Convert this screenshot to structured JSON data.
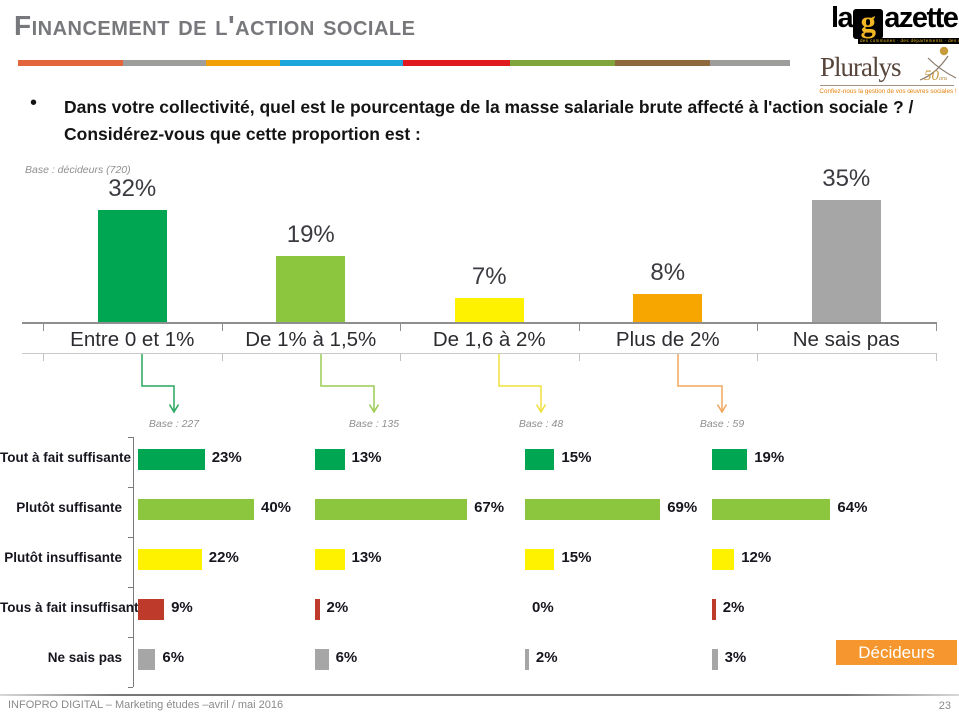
{
  "header": {
    "title": "Financement de l'action sociale",
    "divider_colors": [
      "#E2653B",
      "#9D9D9C",
      "#F2A007",
      "#1BA6DC",
      "#E0191F",
      "#7FA53C",
      "#8F693D",
      "#9D9D9C"
    ],
    "logos": {
      "gazette": {
        "la": "la",
        "g": "g",
        "rest": "azette",
        "tagline": "des communes · des départements · des régions"
      },
      "pluralys": {
        "name": "Pluralys",
        "fifty": "50",
        "ans": "ans",
        "tagline": "Confiez-nous la gestion de vos œuvres sociales !"
      }
    }
  },
  "question": {
    "bullet": "•",
    "text": "Dans votre collectivité, quel est le pourcentage de la masse salariale brute affecté à l'action sociale ? / Considérez-vous que cette proportion est :"
  },
  "base_note": "Base : décideurs (720)",
  "chart_data": [
    {
      "type": "bar",
      "title": "",
      "categories": [
        "Entre 0 et 1%",
        "De 1% à 1,5%",
        "De 1,6 à 2%",
        "Plus de 2%",
        "Ne sais pas"
      ],
      "values": [
        32,
        19,
        7,
        8,
        35
      ],
      "data_labels": [
        "32%",
        "19%",
        "7%",
        "8%",
        "35%"
      ],
      "unit": "%",
      "ylim": [
        0,
        40
      ],
      "grid": false,
      "colors": [
        "#00A651",
        "#8CC63F",
        "#FFF200",
        "#F7A600",
        "#A6A6A6"
      ]
    },
    {
      "type": "bar-horizontal",
      "title": "",
      "rows": [
        "Tout à fait suffisante",
        "Plutôt suffisante",
        "Plutôt insuffisante",
        "Tous à fait insuffisante",
        "Ne sais pas"
      ],
      "row_colors": [
        "#00A651",
        "#8CC63F",
        "#FFF200",
        "#BE3A2B",
        "#A6A6A6"
      ],
      "unit": "%",
      "connector_colors": [
        "#27A55C",
        "#9CCB52",
        "#EFE03C",
        "#F2A55C"
      ],
      "columns": [
        {
          "base_label": "Base : 227",
          "values": [
            23,
            40,
            22,
            9,
            6
          ]
        },
        {
          "base_label": "Base : 135",
          "values": [
            13,
            67,
            13,
            2,
            6
          ]
        },
        {
          "base_label": "Base : 48",
          "values": [
            15,
            69,
            15,
            0,
            2
          ]
        },
        {
          "base_label": "Base : 59",
          "values": [
            19,
            64,
            12,
            2,
            3
          ]
        }
      ]
    }
  ],
  "badge": {
    "label": "Décideurs",
    "color": "#F5962E"
  },
  "footer": {
    "text": "INFOPRO DIGITAL – Marketing études –avril / mai 2016",
    "page_number": "23"
  }
}
